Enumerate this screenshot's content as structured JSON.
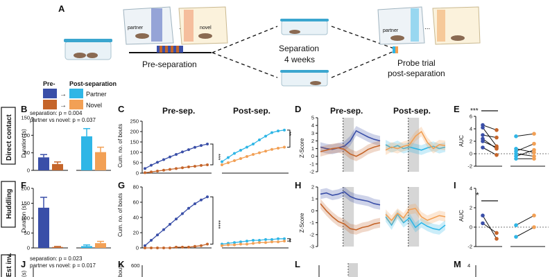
{
  "panel_letters": [
    "A",
    "B",
    "C",
    "D",
    "E",
    "F",
    "G",
    "H",
    "I",
    "J",
    "K",
    "L",
    "M"
  ],
  "panel_A": {
    "partner_label": "partner",
    "novel_label": "novel",
    "ellipsis": "...",
    "pre_separation": "Pre-separation",
    "separation_line1": "Separation",
    "separation_line2": "4 weeks",
    "probe_line1": "Probe trial",
    "probe_line2": "post-separation"
  },
  "legend": {
    "pre_label": "Pre-",
    "post_label": "Post-separation",
    "partner": "Partner",
    "novel": "Novel"
  },
  "row_labels": [
    "Direct contact",
    "Huddling",
    "Est inv."
  ],
  "stats": {
    "B_line1": "separation: p = 0.004",
    "B_line2": "partner vs novel: p = 0.037",
    "J_line1": "separation: p = 0.023",
    "J_line2": "partner vs novel: p = 0.017"
  },
  "axis_labels": {
    "duration": "Duration (s)",
    "cum_bouts": "Cum. no. of bouts",
    "zscore": "Z-Score",
    "auc": "AUC"
  },
  "titles": {
    "pre_sep": "Pre-sep.",
    "post_sep": "Post-sep."
  },
  "significance": {
    "C": "***",
    "C2": "**",
    "E": "***",
    "G": "****",
    "G2": "**",
    "I": "*"
  },
  "colors": {
    "pre_partner": "#3a4fa8",
    "pre_novel": "#c5652a",
    "post_partner": "#2fb6e6",
    "post_novel": "#f2a055",
    "shade": "#c8c8c8"
  },
  "chart_data": [
    {
      "panel": "B",
      "type": "bar",
      "ylabel": "Duration (s)",
      "ylim": [
        0,
        150
      ],
      "yticks": [
        0,
        50,
        100,
        150
      ],
      "categories": [
        "Pre partner",
        "Pre novel",
        "Post partner",
        "Post novel"
      ],
      "values": [
        37,
        18,
        97,
        52
      ],
      "errors": [
        8,
        6,
        22,
        14
      ]
    },
    {
      "panel": "F",
      "type": "bar",
      "ylabel": "Duration (s)",
      "ylim": [
        0,
        200
      ],
      "yticks": [
        0,
        50,
        100,
        150,
        200
      ],
      "categories": [
        "Pre partner",
        "Pre novel",
        "Post partner",
        "Post novel"
      ],
      "values": [
        135,
        3,
        6,
        16
      ],
      "errors": [
        35,
        2,
        4,
        6
      ]
    },
    {
      "panel": "C",
      "type": "line",
      "ylabel": "Cum. no. of bouts",
      "ylim": [
        0,
        250
      ],
      "yticks": [
        0,
        50,
        100,
        150,
        200,
        250
      ],
      "series": [
        {
          "name": "Partner",
          "values": [
            22,
            38,
            52,
            65,
            78,
            90,
            102,
            113,
            124,
            133,
            140
          ]
        },
        {
          "name": "Novel",
          "values": [
            2,
            6,
            10,
            14,
            18,
            22,
            26,
            30,
            33,
            37,
            40
          ]
        }
      ],
      "series_post": [
        {
          "name": "Partner",
          "values": [
            55,
            75,
            95,
            110,
            125,
            140,
            160,
            178,
            195,
            203,
            207
          ]
        },
        {
          "name": "Novel",
          "values": [
            40,
            50,
            60,
            70,
            80,
            90,
            98,
            106,
            114,
            120,
            125
          ]
        }
      ]
    },
    {
      "panel": "G",
      "type": "line",
      "ylabel": "Cum. no. of bouts",
      "ylim": [
        0,
        80
      ],
      "yticks": [
        0,
        20,
        40,
        60,
        80
      ],
      "series": [
        {
          "name": "Partner",
          "values": [
            3,
            10,
            17,
            24,
            31,
            38,
            45,
            52,
            58,
            63,
            67
          ]
        },
        {
          "name": "Novel",
          "values": [
            0,
            0,
            0,
            0,
            0,
            1,
            1,
            1,
            2,
            3,
            5
          ]
        }
      ],
      "series_post": [
        {
          "name": "Partner",
          "values": [
            5,
            6,
            7,
            8,
            9,
            10,
            10,
            11,
            11,
            12,
            12
          ]
        },
        {
          "name": "Novel",
          "values": [
            3,
            4,
            4,
            5,
            5,
            6,
            7,
            7,
            8,
            8,
            9
          ]
        }
      ]
    },
    {
      "panel": "D",
      "type": "line",
      "ylabel": "Z-Score",
      "ylim": [
        -2,
        5
      ],
      "yticks": [
        -2,
        -1,
        0,
        1,
        2,
        3,
        4,
        5
      ],
      "series": [
        {
          "name": "Pre partner",
          "values": [
            1.2,
            1.0,
            0.9,
            1.1,
            1.3,
            2.0,
            3.3,
            2.9,
            2.5,
            2.2,
            2.0
          ]
        },
        {
          "name": "Pre novel",
          "values": [
            0.6,
            0.8,
            1.0,
            1.1,
            0.9,
            0.3,
            0.0,
            0.4,
            0.9,
            1.2,
            1.4
          ]
        }
      ],
      "series_post": [
        {
          "name": "Post partner",
          "values": [
            1.5,
            1.1,
            1.4,
            1.0,
            1.2,
            1.0,
            0.8,
            1.1,
            1.3,
            1.0,
            1.2
          ]
        },
        {
          "name": "Post novel",
          "values": [
            0.8,
            1.2,
            1.0,
            1.3,
            1.5,
            2.6,
            3.2,
            1.8,
            1.0,
            1.5,
            1.4
          ]
        }
      ]
    },
    {
      "panel": "H",
      "type": "line",
      "ylabel": "Z-Score",
      "ylim": [
        -3,
        2
      ],
      "yticks": [
        -3,
        -2,
        -1,
        0,
        1,
        2
      ],
      "series": [
        {
          "name": "Pre partner",
          "values": [
            1.4,
            1.5,
            1.3,
            1.4,
            1.6,
            1.2,
            1.0,
            0.9,
            0.8,
            0.6,
            0.5
          ]
        },
        {
          "name": "Pre novel",
          "values": [
            0.6,
            0.0,
            -0.5,
            -0.9,
            -1.1,
            -1.5,
            -1.6,
            -1.4,
            -1.3,
            -1.1,
            -1.0
          ]
        }
      ],
      "series_post": [
        {
          "name": "Post partner",
          "values": [
            -0.5,
            -1.2,
            -0.3,
            -1.0,
            -0.6,
            -1.4,
            -1.0,
            -1.3,
            -1.5,
            -1.6,
            -1.2
          ]
        },
        {
          "name": "Post novel",
          "values": [
            -0.3,
            -0.8,
            -0.2,
            -0.6,
            0.1,
            0.2,
            -0.5,
            -0.8,
            -0.6,
            -0.4,
            -0.5
          ]
        }
      ]
    },
    {
      "panel": "E",
      "type": "scatter",
      "ylabel": "AUC",
      "ylim": [
        -2,
        6
      ],
      "yticks": [
        -2,
        0,
        2,
        4,
        6
      ],
      "pre_pairs": [
        [
          4.6,
          3.8
        ],
        [
          4.2,
          1.2
        ],
        [
          3.0,
          2.6
        ],
        [
          2.4,
          0.8
        ],
        [
          2.0,
          1.0
        ],
        [
          1.0,
          -0.2
        ]
      ],
      "post_pairs": [
        [
          2.8,
          3.2
        ],
        [
          0.8,
          0.2
        ],
        [
          0.4,
          1.6
        ],
        [
          0.0,
          -0.4
        ],
        [
          -0.4,
          0.6
        ],
        [
          -0.8,
          -0.8
        ]
      ]
    },
    {
      "panel": "I",
      "type": "scatter",
      "ylabel": "AUC",
      "ylim": [
        -2,
        4
      ],
      "yticks": [
        -2,
        0,
        2,
        4
      ],
      "pre_pairs": [
        [
          1.2,
          -1.2
        ],
        [
          0.4,
          -0.6
        ]
      ],
      "post_pairs": [
        [
          0.2,
          1.2
        ],
        [
          -1.0,
          0.0
        ]
      ]
    }
  ],
  "partial_row": {
    "K_ytick": "600",
    "K_ylabel_fragment": "bouts",
    "J_ylabel_fragment": "(s)",
    "M_ytick": "4"
  }
}
